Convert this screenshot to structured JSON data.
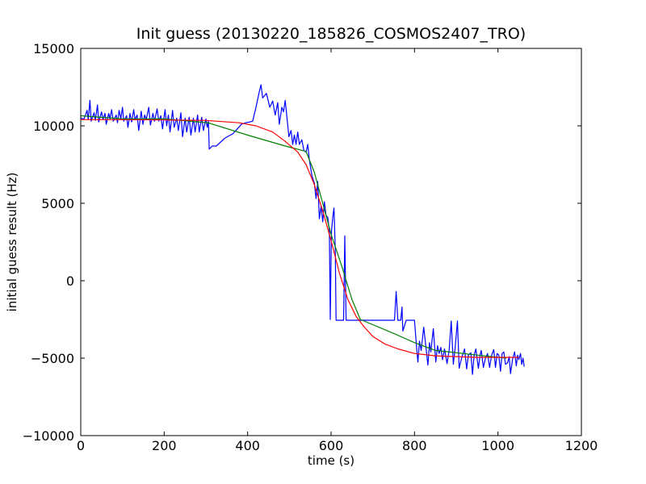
{
  "chart_data": {
    "type": "line",
    "title": "Init guess (20130220_185826_COSMOS2407_TRO)",
    "xlabel": "time (s)",
    "ylabel": "initial guess result (Hz)",
    "xlim": [
      0,
      1200
    ],
    "ylim": [
      -10000,
      15000
    ],
    "x_ticks": [
      0,
      200,
      400,
      600,
      800,
      1000,
      1200
    ],
    "x_tick_labels": [
      "0",
      "200",
      "400",
      "600",
      "800",
      "1000",
      "1200"
    ],
    "y_ticks": [
      -10000,
      -5000,
      0,
      5000,
      10000,
      15000
    ],
    "y_tick_labels": [
      "−10000",
      "−5000",
      "0",
      "5000",
      "10000",
      "15000"
    ],
    "grid": false,
    "legend": "none",
    "series": [
      {
        "color": "#0000ff",
        "points": [
          [
            0,
            10500
          ],
          [
            8,
            10450
          ],
          [
            15,
            11000
          ],
          [
            18,
            10400
          ],
          [
            22,
            11650
          ],
          [
            25,
            10300
          ],
          [
            32,
            10850
          ],
          [
            35,
            10350
          ],
          [
            40,
            11350
          ],
          [
            43,
            10250
          ],
          [
            50,
            10900
          ],
          [
            53,
            10400
          ],
          [
            58,
            10800
          ],
          [
            61,
            10100
          ],
          [
            67,
            10800
          ],
          [
            70,
            10450
          ],
          [
            74,
            11050
          ],
          [
            78,
            10300
          ],
          [
            85,
            10700
          ],
          [
            88,
            10200
          ],
          [
            92,
            11000
          ],
          [
            96,
            10450
          ],
          [
            100,
            11200
          ],
          [
            103,
            10300
          ],
          [
            110,
            10650
          ],
          [
            113,
            9900
          ],
          [
            118,
            10800
          ],
          [
            122,
            10250
          ],
          [
            127,
            11050
          ],
          [
            130,
            10400
          ],
          [
            135,
            10700
          ],
          [
            139,
            9700
          ],
          [
            145,
            10950
          ],
          [
            149,
            10100
          ],
          [
            153,
            10700
          ],
          [
            157,
            10400
          ],
          [
            163,
            11200
          ],
          [
            167,
            10050
          ],
          [
            173,
            10800
          ],
          [
            177,
            10300
          ],
          [
            183,
            11100
          ],
          [
            187,
            10300
          ],
          [
            192,
            10650
          ],
          [
            196,
            9800
          ],
          [
            202,
            11050
          ],
          [
            206,
            10000
          ],
          [
            210,
            10700
          ],
          [
            214,
            9600
          ],
          [
            220,
            11000
          ],
          [
            224,
            9900
          ],
          [
            230,
            10500
          ],
          [
            234,
            9700
          ],
          [
            240,
            10850
          ],
          [
            244,
            9300
          ],
          [
            250,
            10500
          ],
          [
            254,
            9600
          ],
          [
            260,
            10550
          ],
          [
            264,
            9400
          ],
          [
            270,
            10500
          ],
          [
            274,
            9600
          ],
          [
            280,
            10700
          ],
          [
            284,
            9600
          ],
          [
            290,
            10550
          ],
          [
            294,
            9700
          ],
          [
            300,
            10450
          ],
          [
            303,
            9900
          ],
          [
            306,
            10300
          ],
          [
            308,
            8500
          ],
          [
            315,
            8700
          ],
          [
            325,
            8700
          ],
          [
            345,
            9200
          ],
          [
            355,
            9350
          ],
          [
            365,
            9500
          ],
          [
            375,
            9800
          ],
          [
            385,
            10100
          ],
          [
            395,
            10200
          ],
          [
            405,
            10250
          ],
          [
            412,
            10300
          ],
          [
            420,
            11200
          ],
          [
            428,
            12200
          ],
          [
            432,
            12650
          ],
          [
            436,
            11800
          ],
          [
            445,
            12100
          ],
          [
            453,
            11200
          ],
          [
            460,
            11600
          ],
          [
            466,
            10700
          ],
          [
            472,
            11500
          ],
          [
            476,
            10100
          ],
          [
            482,
            11200
          ],
          [
            486,
            10900
          ],
          [
            490,
            11650
          ],
          [
            495,
            10300
          ],
          [
            499,
            9300
          ],
          [
            504,
            9700
          ],
          [
            508,
            8800
          ],
          [
            512,
            9400
          ],
          [
            516,
            8800
          ],
          [
            520,
            9600
          ],
          [
            524,
            8800
          ],
          [
            530,
            9100
          ],
          [
            535,
            8400
          ],
          [
            540,
            8300
          ],
          [
            544,
            8800
          ],
          [
            548,
            7800
          ],
          [
            554,
            6800
          ],
          [
            560,
            6300
          ],
          [
            564,
            5300
          ],
          [
            568,
            6400
          ],
          [
            572,
            4000
          ],
          [
            576,
            4800
          ],
          [
            580,
            3800
          ],
          [
            584,
            5100
          ],
          [
            588,
            4200
          ],
          [
            592,
            4100
          ],
          [
            596,
            3200
          ],
          [
            598,
            -2500
          ],
          [
            601,
            3200
          ],
          [
            604,
            4100
          ],
          [
            607,
            4700
          ],
          [
            610,
            2000
          ],
          [
            612,
            -2550
          ],
          [
            630,
            -2550
          ],
          [
            633,
            2900
          ],
          [
            636,
            -2550
          ],
          [
            676,
            -2550
          ],
          [
            700,
            -2550
          ],
          [
            727,
            -2550
          ],
          [
            735,
            -2550
          ],
          [
            740,
            -2550
          ],
          [
            746,
            -2550
          ],
          [
            752,
            -2550
          ],
          [
            756,
            -700
          ],
          [
            760,
            -2550
          ],
          [
            767,
            -2550
          ],
          [
            770,
            -1700
          ],
          [
            772,
            -3250
          ],
          [
            780,
            -2550
          ],
          [
            800,
            -2550
          ],
          [
            805,
            -4300
          ],
          [
            808,
            -5250
          ],
          [
            812,
            -3900
          ],
          [
            816,
            -4500
          ],
          [
            822,
            -3000
          ],
          [
            827,
            -4200
          ],
          [
            832,
            -5450
          ],
          [
            836,
            -4000
          ],
          [
            839,
            -4600
          ],
          [
            845,
            -3100
          ],
          [
            851,
            -5250
          ],
          [
            855,
            -4200
          ],
          [
            859,
            -4700
          ],
          [
            863,
            -4300
          ],
          [
            867,
            -5100
          ],
          [
            872,
            -4400
          ],
          [
            878,
            -5350
          ],
          [
            883,
            -4500
          ],
          [
            888,
            -2600
          ],
          [
            893,
            -5400
          ],
          [
            897,
            -4400
          ],
          [
            903,
            -2600
          ],
          [
            907,
            -5650
          ],
          [
            910,
            -5300
          ],
          [
            914,
            -4900
          ],
          [
            920,
            -4400
          ],
          [
            925,
            -5700
          ],
          [
            929,
            -4800
          ],
          [
            935,
            -4650
          ],
          [
            939,
            -6050
          ],
          [
            943,
            -4800
          ],
          [
            947,
            -4400
          ],
          [
            953,
            -5650
          ],
          [
            957,
            -4800
          ],
          [
            960,
            -4500
          ],
          [
            965,
            -5600
          ],
          [
            970,
            -5000
          ],
          [
            975,
            -4700
          ],
          [
            980,
            -5600
          ],
          [
            985,
            -4800
          ],
          [
            990,
            -4450
          ],
          [
            994,
            -5600
          ],
          [
            998,
            -4700
          ],
          [
            1002,
            -4800
          ],
          [
            1006,
            -5850
          ],
          [
            1010,
            -4700
          ],
          [
            1014,
            -4600
          ],
          [
            1018,
            -5400
          ],
          [
            1023,
            -5300
          ],
          [
            1027,
            -4900
          ],
          [
            1030,
            -6000
          ],
          [
            1035,
            -5050
          ],
          [
            1040,
            -4600
          ],
          [
            1044,
            -5500
          ],
          [
            1047,
            -4800
          ],
          [
            1050,
            -5100
          ],
          [
            1054,
            -4700
          ],
          [
            1057,
            -5400
          ],
          [
            1060,
            -5000
          ],
          [
            1063,
            -5550
          ]
        ]
      },
      {
        "color": "#008000",
        "points": [
          [
            0,
            10650
          ],
          [
            100,
            10450
          ],
          [
            200,
            10450
          ],
          [
            305,
            10200
          ],
          [
            400,
            9400
          ],
          [
            490,
            8700
          ],
          [
            540,
            8350
          ],
          [
            560,
            7000
          ],
          [
            600,
            3000
          ],
          [
            625,
            1000
          ],
          [
            650,
            -1200
          ],
          [
            670,
            -2500
          ],
          [
            750,
            -3400
          ],
          [
            800,
            -4000
          ],
          [
            850,
            -4500
          ],
          [
            950,
            -4800
          ],
          [
            1020,
            -5000
          ]
        ]
      },
      {
        "color": "#ff0000",
        "points": [
          [
            0,
            10400
          ],
          [
            100,
            10400
          ],
          [
            200,
            10380
          ],
          [
            300,
            10350
          ],
          [
            380,
            10200
          ],
          [
            420,
            10000
          ],
          [
            460,
            9600
          ],
          [
            490,
            9000
          ],
          [
            520,
            8300
          ],
          [
            540,
            7500
          ],
          [
            560,
            6200
          ],
          [
            580,
            4500
          ],
          [
            600,
            2600
          ],
          [
            620,
            500
          ],
          [
            640,
            -1200
          ],
          [
            660,
            -2300
          ],
          [
            680,
            -3000
          ],
          [
            700,
            -3600
          ],
          [
            730,
            -4100
          ],
          [
            760,
            -4400
          ],
          [
            800,
            -4700
          ],
          [
            850,
            -4850
          ],
          [
            900,
            -4900
          ],
          [
            950,
            -4950
          ],
          [
            1000,
            -4950
          ],
          [
            1050,
            -4950
          ]
        ]
      }
    ]
  }
}
